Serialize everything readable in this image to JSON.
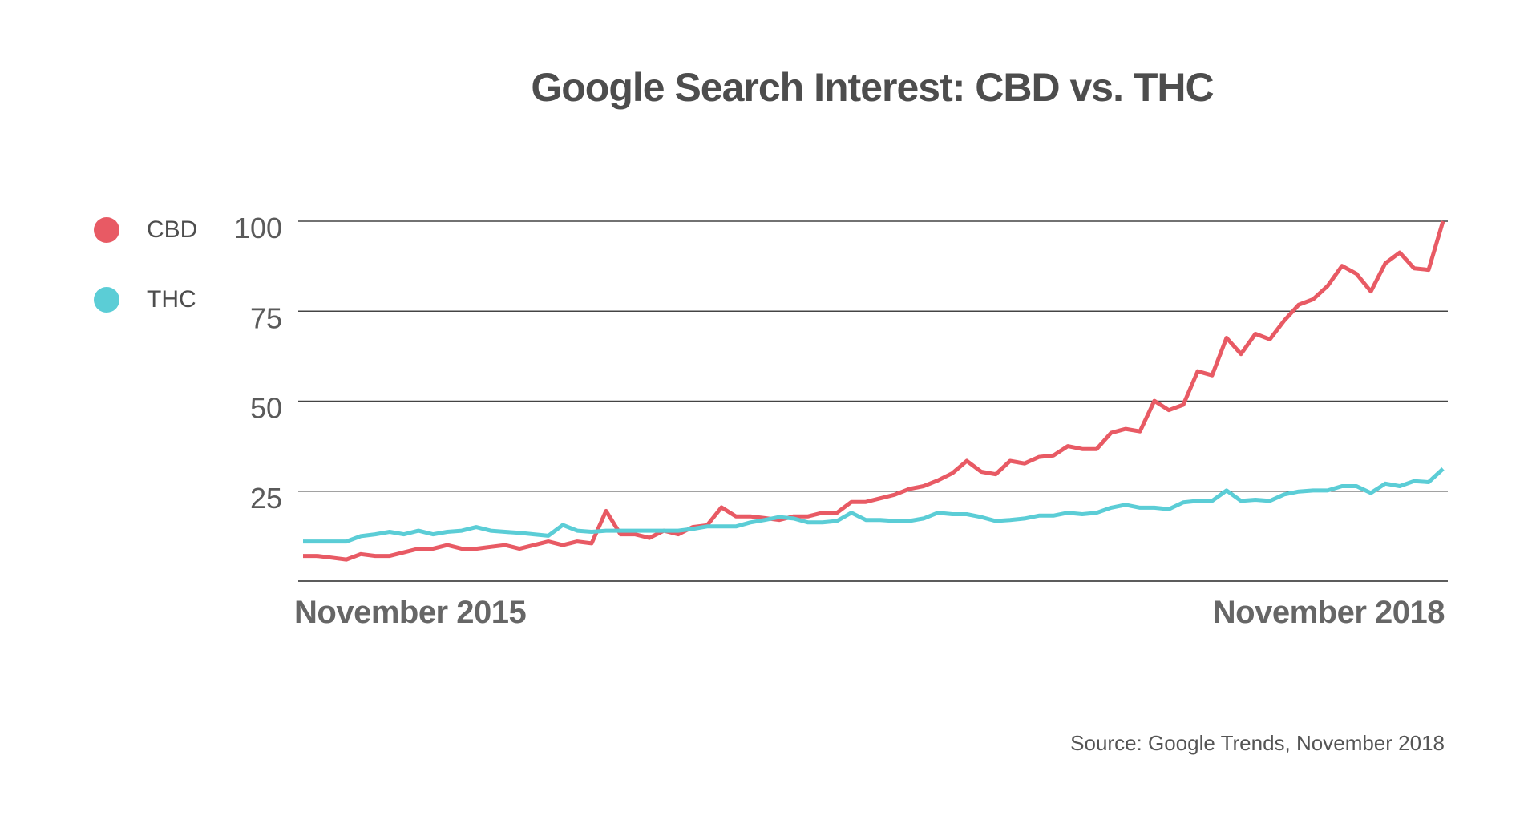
{
  "chart_data": {
    "type": "line",
    "title": "Google Search Interest: CBD vs. THC",
    "x_tick_labels": [
      "November 2015",
      "November 2018"
    ],
    "y_ticks": [
      25,
      50,
      75,
      100
    ],
    "ylim": [
      0,
      100
    ],
    "grid": true,
    "legend_placement": "left",
    "series": [
      {
        "name": "CBD",
        "color": "#e85a64",
        "values": [
          7,
          7,
          6.5,
          6,
          7.5,
          7,
          7,
          8,
          9,
          9,
          10,
          9,
          9,
          9.5,
          10,
          9,
          10,
          11,
          10,
          11,
          10.5,
          19.5,
          13,
          13,
          12,
          14,
          13,
          15,
          15.5,
          20.5,
          18,
          18,
          17.5,
          17,
          18,
          18,
          19,
          19,
          22,
          22,
          23,
          24,
          25.6,
          26.4,
          28,
          30,
          33.4,
          30.4,
          29.7,
          33.4,
          32.7,
          34.5,
          34.9,
          37.5,
          36.7,
          36.7,
          41.2,
          42.3,
          41.6,
          50.1,
          47.5,
          49,
          58.3,
          57.2,
          67.6,
          63.1,
          68.7,
          67.2,
          72.4,
          76.8,
          78.3,
          82,
          87.6,
          85.4,
          80.5,
          88.3,
          91.3,
          86.9,
          86.5,
          100
        ]
      },
      {
        "name": "THC",
        "color": "#5bcdd6",
        "values": [
          11,
          11,
          11,
          11,
          12.5,
          13,
          13.7,
          13,
          14,
          13,
          13.7,
          14,
          15,
          14,
          13.7,
          13.4,
          13,
          12.6,
          15.6,
          14,
          13.7,
          14,
          14,
          14,
          14,
          14,
          14,
          14.5,
          15.2,
          15.2,
          15.2,
          16.3,
          17,
          17.8,
          17.4,
          16.3,
          16.3,
          16.7,
          19,
          17,
          17,
          16.7,
          16.7,
          17.4,
          19,
          18.6,
          18.6,
          17.8,
          16.7,
          17,
          17.4,
          18.2,
          18.2,
          19,
          18.6,
          19,
          20.4,
          21.2,
          20.4,
          20.4,
          20,
          21.9,
          22.3,
          22.3,
          25.2,
          22.3,
          22.6,
          22.3,
          24.1,
          24.9,
          25.2,
          25.2,
          26.4,
          26.4,
          24.5,
          27.1,
          26.4,
          27.8,
          27.5,
          31.2
        ]
      }
    ]
  },
  "source": "Source: Google Trends, November 2018"
}
